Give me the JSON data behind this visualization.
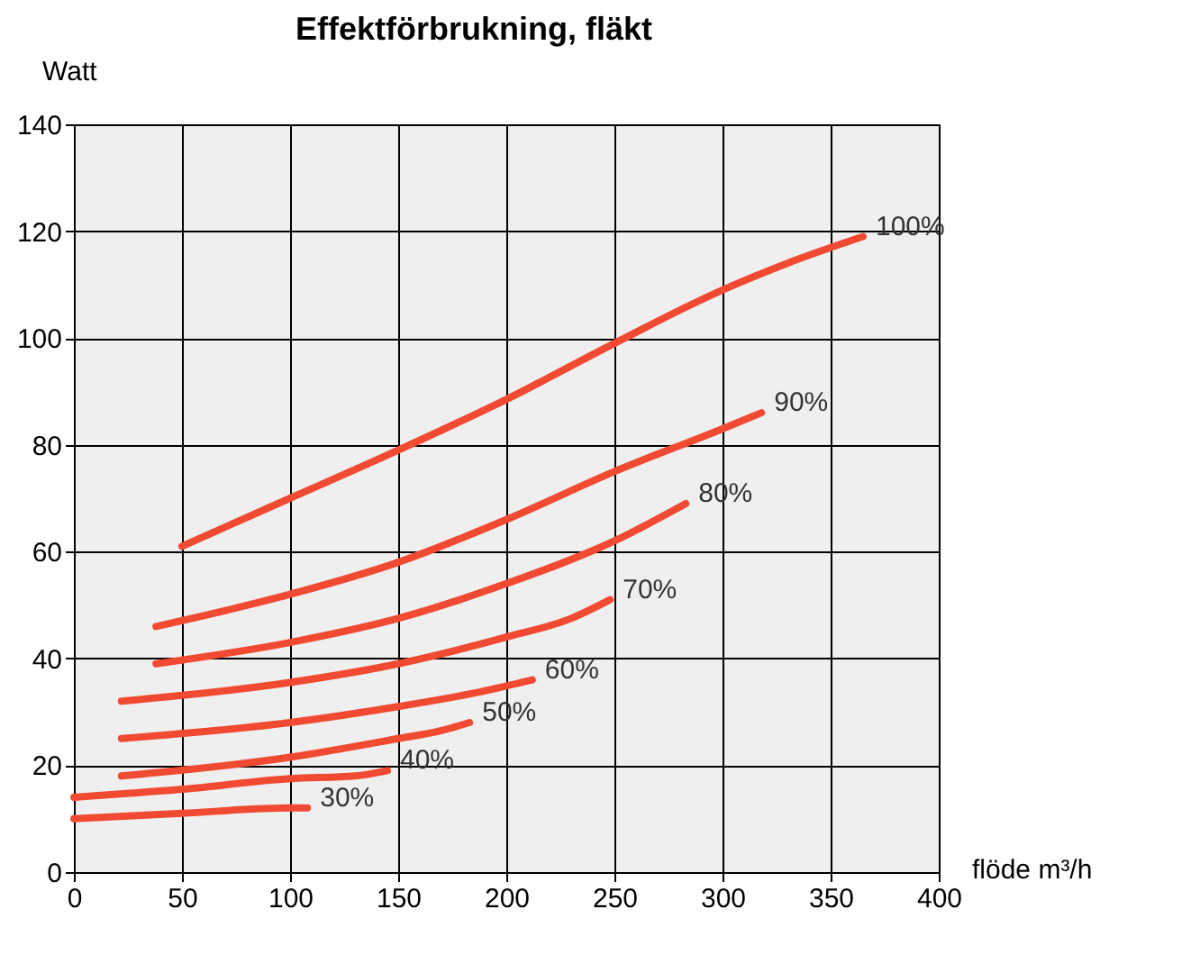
{
  "chart_data": {
    "type": "line",
    "title": "Effektförbrukning, fläkt",
    "xlabel": "flöde m³/h",
    "ylabel": "Watt",
    "xlim": [
      0,
      400
    ],
    "xticks": [
      0,
      50,
      100,
      150,
      200,
      250,
      300,
      350,
      400
    ],
    "ylim": [
      0,
      140
    ],
    "yticks": [
      0,
      20,
      40,
      60,
      80,
      100,
      120,
      140
    ],
    "grid": true,
    "legend": false,
    "marker": "none",
    "line_style": "solid",
    "series": [
      {
        "name": "100%",
        "color": "#f04a32",
        "x": [
          50,
          100,
          150,
          200,
          250,
          300,
          330,
          365
        ],
        "values": [
          61,
          70,
          79,
          88.5,
          99,
          109,
          114,
          119
        ]
      },
      {
        "name": "90%",
        "color": "#f04a32",
        "x": [
          38,
          100,
          150,
          200,
          250,
          300,
          318
        ],
        "values": [
          46,
          52,
          58,
          66,
          75,
          83,
          86
        ]
      },
      {
        "name": "80%",
        "color": "#f04a32",
        "x": [
          38,
          100,
          150,
          200,
          250,
          283
        ],
        "values": [
          39,
          43,
          47.5,
          54,
          62,
          69
        ]
      },
      {
        "name": "70%",
        "color": "#f04a32",
        "x": [
          22,
          100,
          150,
          200,
          230,
          248
        ],
        "values": [
          32,
          35.5,
          39,
          44,
          47.5,
          51
        ]
      },
      {
        "name": "60%",
        "color": "#f04a32",
        "x": [
          22,
          100,
          150,
          185,
          212
        ],
        "values": [
          25,
          28,
          31,
          33.5,
          36
        ]
      },
      {
        "name": "50%",
        "color": "#f04a32",
        "x": [
          22,
          100,
          150,
          170,
          183
        ],
        "values": [
          18,
          21.5,
          25,
          26.5,
          28
        ]
      },
      {
        "name": "40%",
        "color": "#f04a32",
        "x": [
          0,
          50,
          100,
          130,
          145
        ],
        "values": [
          14,
          15.5,
          17.5,
          18,
          19
        ]
      },
      {
        "name": "30%",
        "color": "#f04a32",
        "x": [
          0,
          50,
          100,
          108
        ],
        "values": [
          10,
          11,
          12,
          12
        ]
      }
    ]
  }
}
